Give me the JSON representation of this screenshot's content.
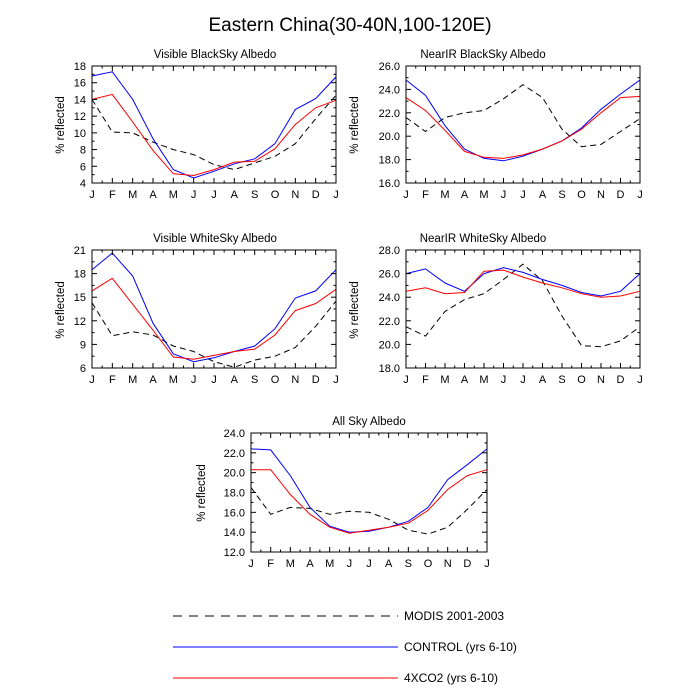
{
  "title": "Eastern China(30-40N,100-120E)",
  "chart_data": [
    {
      "type": "line",
      "title": "Visible BlackSky Albedo",
      "xlabel": "",
      "ylabel": "% reflected",
      "categories": [
        "J",
        "F",
        "M",
        "A",
        "M",
        "J",
        "J",
        "A",
        "S",
        "O",
        "N",
        "D",
        "J"
      ],
      "ylim": [
        4,
        18
      ],
      "yticks": [
        4,
        6,
        8,
        10,
        12,
        14,
        16,
        18
      ],
      "ytick_labels": [
        "4",
        "6",
        "8",
        "10",
        "12",
        "14",
        "16",
        "18"
      ],
      "series": [
        {
          "name": "MODIS 2001-2003",
          "values": [
            14.0,
            10.1,
            10.0,
            8.9,
            8.0,
            7.4,
            6.2,
            5.6,
            6.4,
            7.2,
            8.7,
            11.7,
            14.5
          ]
        },
        {
          "name": "CONTROL (yrs 6-10)",
          "values": [
            16.8,
            17.3,
            14.0,
            9.3,
            5.6,
            4.6,
            5.4,
            6.3,
            6.9,
            8.7,
            12.8,
            14.1,
            16.7
          ]
        },
        {
          "name": "4XCO2 (yrs 6-10)",
          "values": [
            14.0,
            14.6,
            11.3,
            7.9,
            5.1,
            4.9,
            5.6,
            6.5,
            6.6,
            8.1,
            11.0,
            13.0,
            13.9
          ]
        }
      ]
    },
    {
      "type": "line",
      "title": "NearIR BlackSky Albedo",
      "xlabel": "",
      "ylabel": "% reflected",
      "categories": [
        "J",
        "F",
        "M",
        "A",
        "M",
        "J",
        "J",
        "A",
        "S",
        "O",
        "N",
        "D",
        "J"
      ],
      "ylim": [
        16,
        26
      ],
      "yticks": [
        16,
        18,
        20,
        22,
        24,
        26
      ],
      "ytick_labels": [
        "16.0",
        "18.0",
        "20.0",
        "22.0",
        "24.0",
        "26.0"
      ],
      "series": [
        {
          "name": "MODIS 2001-2003",
          "values": [
            21.6,
            20.4,
            21.6,
            22.0,
            22.2,
            23.2,
            24.4,
            23.3,
            20.6,
            19.1,
            19.3,
            20.4,
            21.5
          ]
        },
        {
          "name": "CONTROL (yrs 6-10)",
          "values": [
            24.8,
            23.5,
            20.9,
            18.9,
            18.1,
            17.9,
            18.3,
            18.9,
            19.6,
            20.7,
            22.3,
            23.6,
            24.8
          ]
        },
        {
          "name": "4XCO2 (yrs 6-10)",
          "values": [
            23.3,
            22.2,
            20.5,
            18.7,
            18.2,
            18.1,
            18.4,
            18.9,
            19.6,
            20.6,
            22.0,
            23.3,
            23.4
          ]
        }
      ]
    },
    {
      "type": "line",
      "title": "Visible WhiteSky Albedo",
      "xlabel": "",
      "ylabel": "% reflected",
      "categories": [
        "J",
        "F",
        "M",
        "A",
        "M",
        "J",
        "J",
        "A",
        "S",
        "O",
        "N",
        "D",
        "J"
      ],
      "ylim": [
        6,
        21
      ],
      "yticks": [
        6,
        9,
        12,
        15,
        18,
        21
      ],
      "ytick_labels": [
        "6",
        "9",
        "12",
        "15",
        "18",
        "21"
      ],
      "series": [
        {
          "name": "MODIS 2001-2003",
          "values": [
            14.3,
            10.1,
            10.6,
            10.2,
            8.8,
            8.1,
            6.8,
            6.1,
            7.0,
            7.5,
            8.6,
            11.3,
            14.5
          ]
        },
        {
          "name": "CONTROL (yrs 6-10)",
          "values": [
            18.5,
            20.6,
            17.7,
            11.7,
            7.8,
            6.8,
            7.3,
            8.1,
            8.8,
            11.0,
            14.9,
            15.8,
            18.5
          ]
        },
        {
          "name": "4XCO2 (yrs 6-10)",
          "values": [
            15.8,
            17.4,
            14.1,
            10.8,
            7.4,
            7.1,
            7.6,
            8.1,
            8.4,
            10.2,
            13.3,
            14.2,
            16.0
          ]
        }
      ]
    },
    {
      "type": "line",
      "title": "NearIR WhiteSky Albedo",
      "xlabel": "",
      "ylabel": "% reflected",
      "categories": [
        "J",
        "F",
        "M",
        "A",
        "M",
        "J",
        "J",
        "A",
        "S",
        "O",
        "N",
        "D",
        "J"
      ],
      "ylim": [
        18,
        28
      ],
      "yticks": [
        18,
        20,
        22,
        24,
        26,
        28
      ],
      "ytick_labels": [
        "18.0",
        "20.0",
        "22.0",
        "24.0",
        "26.0",
        "28.0"
      ],
      "series": [
        {
          "name": "MODIS 2001-2003",
          "values": [
            21.5,
            20.7,
            22.8,
            23.8,
            24.3,
            25.5,
            26.8,
            25.4,
            22.4,
            19.9,
            19.8,
            20.3,
            21.5
          ]
        },
        {
          "name": "CONTROL (yrs 6-10)",
          "values": [
            26.0,
            26.4,
            25.2,
            24.5,
            26.0,
            26.5,
            26.1,
            25.5,
            25.0,
            24.4,
            24.1,
            24.5,
            26.0
          ]
        },
        {
          "name": "4XCO2 (yrs 6-10)",
          "values": [
            24.5,
            24.8,
            24.3,
            24.4,
            26.2,
            26.3,
            25.7,
            25.2,
            24.8,
            24.3,
            24.0,
            24.1,
            24.5
          ]
        }
      ]
    },
    {
      "type": "line",
      "title": "All Sky Albedo",
      "xlabel": "",
      "ylabel": "% reflected",
      "categories": [
        "J",
        "F",
        "M",
        "A",
        "M",
        "J",
        "J",
        "A",
        "S",
        "O",
        "N",
        "D",
        "J"
      ],
      "ylim": [
        12,
        24
      ],
      "yticks": [
        12,
        14,
        16,
        18,
        20,
        22,
        24
      ],
      "ytick_labels": [
        "12.0",
        "14.0",
        "16.0",
        "18.0",
        "20.0",
        "22.0",
        "24.0"
      ],
      "series": [
        {
          "name": "MODIS 2001-2003",
          "values": [
            18.5,
            15.8,
            16.5,
            16.4,
            15.8,
            16.1,
            16.0,
            15.3,
            14.2,
            13.8,
            14.5,
            16.3,
            18.3
          ]
        },
        {
          "name": "CONTROL (yrs 6-10)",
          "values": [
            22.4,
            22.3,
            19.7,
            16.5,
            14.6,
            14.0,
            14.1,
            14.5,
            15.1,
            16.5,
            19.3,
            20.8,
            22.4
          ]
        },
        {
          "name": "4XCO2 (yrs 6-10)",
          "values": [
            20.3,
            20.3,
            17.8,
            15.8,
            14.5,
            13.9,
            14.2,
            14.5,
            14.9,
            16.2,
            18.3,
            19.7,
            20.3
          ]
        }
      ]
    }
  ],
  "legend": [
    {
      "label": "MODIS 2001-2003",
      "color": "#000000",
      "style": "dashed"
    },
    {
      "label": "CONTROL (yrs 6-10)",
      "color": "#0000ff",
      "style": "solid"
    },
    {
      "label": "4XCO2 (yrs 6-10)",
      "color": "#ff0000",
      "style": "solid"
    }
  ],
  "series_colors": [
    "#000000",
    "#0000ff",
    "#ff0000"
  ]
}
